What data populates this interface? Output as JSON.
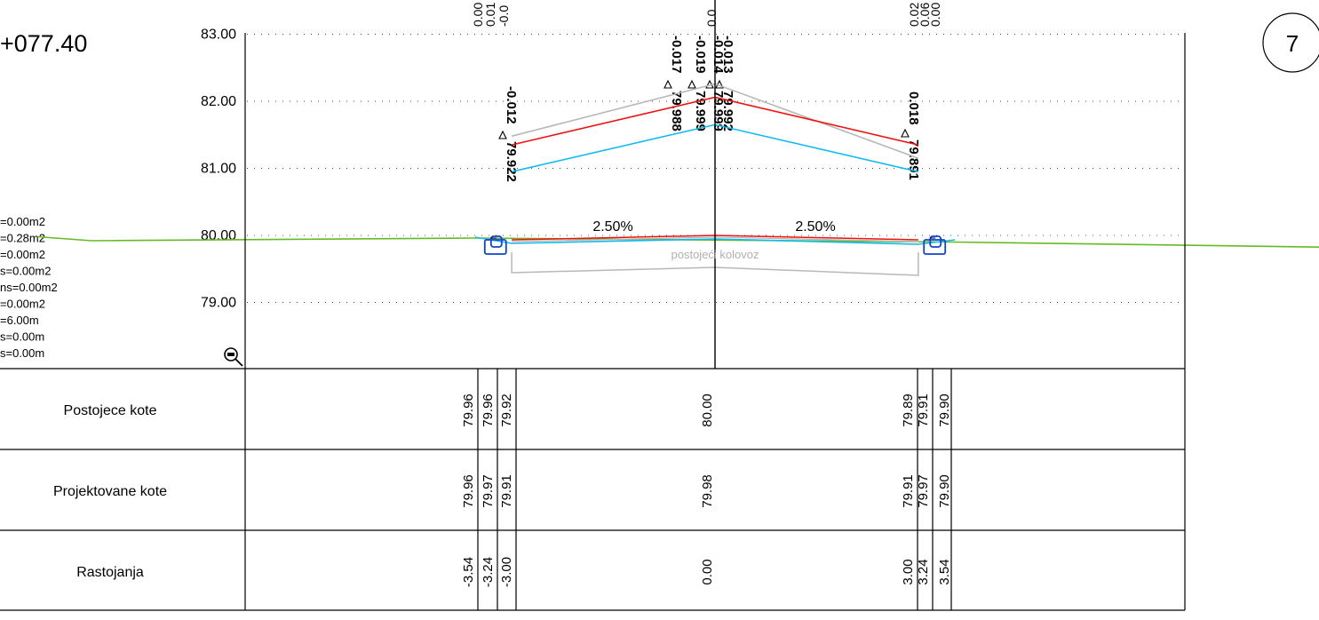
{
  "station_label": "+077.40",
  "sheet_number": "7",
  "area_summary": [
    "=0.00m2",
    "=0.28m2",
    "=0.00m2",
    "s=0.00m2",
    "ns=0.00m2",
    "=0.00m2",
    "=6.00m",
    "s=0.00m",
    "s=0.00m"
  ],
  "elevation_axis": [
    {
      "label": "83.00",
      "value": 83.0
    },
    {
      "label": "82.00",
      "value": 82.0
    },
    {
      "label": "81.00",
      "value": 81.0
    },
    {
      "label": "80.00",
      "value": 80.0
    },
    {
      "label": "79.00",
      "value": 79.0
    }
  ],
  "slope_labels": [
    "2.50%",
    "2.50%"
  ],
  "surface_label": "postojeći kolovoz",
  "top_cutoff_values": [
    "0.00",
    "0.01",
    "-0.0",
    "0.0",
    "0.02",
    "0.06",
    "0.00"
  ],
  "layer_annotations": [
    {
      "diff": "-0.012",
      "elev": "79.922",
      "offset": -3.0
    },
    {
      "diff": "-0.017",
      "elev": "79.988",
      "offset": -0.13
    },
    {
      "diff": "-0.019",
      "elev": "79.999",
      "offset": -0.02
    },
    {
      "diff": "-0.014",
      "elev": "79.999",
      "offset": 0.02
    },
    {
      "diff": "-0.013",
      "elev": "79.992",
      "offset": 0.13
    },
    {
      "diff": "0.018",
      "elev": "79.891",
      "offset": 3.0
    }
  ],
  "table": {
    "rows": [
      {
        "label": "Postojece kote",
        "key": "existing"
      },
      {
        "label": "Projektovane kote",
        "key": "design"
      },
      {
        "label": "Rastojanja",
        "key": "distance"
      }
    ],
    "columns": [
      {
        "offset": -3.54,
        "existing": "79.96",
        "design": "79.96",
        "distance": "-3.54"
      },
      {
        "offset": -3.24,
        "existing": "79.96",
        "design": "79.97",
        "distance": "-3.24"
      },
      {
        "offset": -3.0,
        "existing": "79.92",
        "design": "79.91",
        "distance": "-3.00"
      },
      {
        "offset": 0.0,
        "existing": "80.00",
        "design": "79.98",
        "distance": "0.00"
      },
      {
        "offset": 3.0,
        "existing": "79.89",
        "design": "79.91",
        "distance": "3.00"
      },
      {
        "offset": 3.24,
        "existing": "79.91",
        "design": "79.97",
        "distance": "3.24"
      },
      {
        "offset": 3.54,
        "existing": "79.90",
        "design": "79.90",
        "distance": "3.54"
      }
    ]
  },
  "profiles": {
    "terrain_color": "#66bb22",
    "red_color": "#ee1111",
    "cyan_color": "#11bbee",
    "grey_color": "#b8b8b8",
    "blue_color": "#1144cc",
    "terrain": [
      {
        "offset": -10.0,
        "elev": 79.98
      },
      {
        "offset": -9.2,
        "elev": 79.92
      },
      {
        "offset": -3.54,
        "elev": 79.96
      },
      {
        "offset": 3.54,
        "elev": 79.9
      },
      {
        "offset": 9.3,
        "elev": 79.82
      },
      {
        "offset": 10.0,
        "elev": 79.83
      }
    ],
    "scaled_red": [
      {
        "offset": -3.0,
        "elev": 81.35
      },
      {
        "offset": 0.0,
        "elev": 82.06
      },
      {
        "offset": 3.0,
        "elev": 81.35
      }
    ],
    "scaled_cyan": [
      {
        "offset": -3.0,
        "elev": 80.95
      },
      {
        "offset": 0.0,
        "elev": 81.65
      },
      {
        "offset": 3.0,
        "elev": 80.95
      }
    ],
    "scaled_grey": [
      {
        "offset": -3.0,
        "elev": 81.48
      },
      {
        "offset": 0.0,
        "elev": 82.26
      },
      {
        "offset": 3.0,
        "elev": 81.15
      }
    ]
  }
}
